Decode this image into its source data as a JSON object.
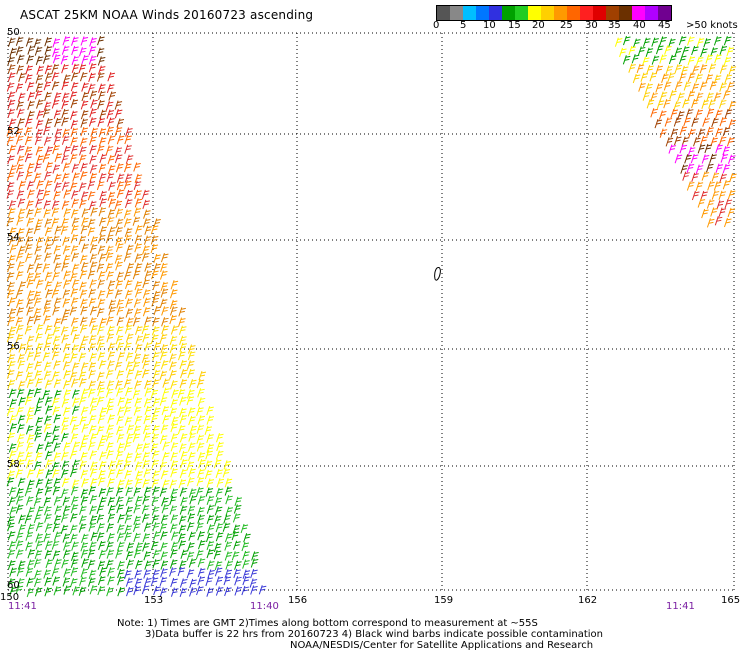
{
  "title": "ASCAT 25KM NOAA Winds 20160723 ascending",
  "legend": {
    "colors": [
      "#555555",
      "#888888",
      "#00bfff",
      "#0077ff",
      "#3030e0",
      "#00a000",
      "#22cc22",
      "#ffff00",
      "#ffd000",
      "#ff9900",
      "#ff6600",
      "#ff2020",
      "#e00000",
      "#a04000",
      "#6b3000",
      "#ff00ff",
      "#b000ff",
      "#700090"
    ],
    "labels": [
      "0",
      "5",
      "10",
      "15",
      "20",
      "25",
      "30",
      "35",
      "40",
      "45",
      ">50 knots"
    ]
  },
  "map": {
    "lat_labels": [
      "50",
      "52",
      "54",
      "56",
      "58",
      "60"
    ],
    "lon_labels": [
      "150",
      "153",
      "156",
      "159",
      "162",
      "165"
    ],
    "time_labels": [
      "11:41",
      "11:40",
      "11:41"
    ]
  },
  "notes": [
    "Note: 1) Times are GMT 2)Times along bottom correspond to measurement at ~55S",
    "3)Data buffer is 22 hrs from 20160723 4) Black wind barbs indicate possible contamination",
    "NOAA/NESDIS/Center for Satellite Applications and Research"
  ]
}
